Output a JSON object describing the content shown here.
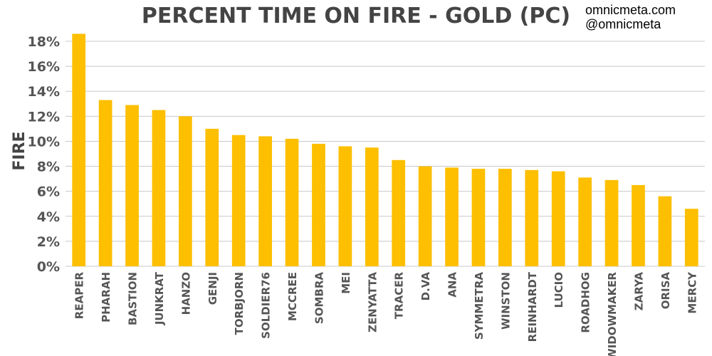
{
  "credit": {
    "site": "omnicmeta.com",
    "handle": "@omnicmeta"
  },
  "chart_data": {
    "type": "bar",
    "title": "PERCENT TIME ON FIRE - GOLD (PC)",
    "xlabel": "",
    "ylabel": "FIRE",
    "ylim": [
      0,
      18
    ],
    "yticks": [
      "0%",
      "2%",
      "4%",
      "6%",
      "8%",
      "10%",
      "12%",
      "14%",
      "16%",
      "18%"
    ],
    "grid": true,
    "bar_color": "#fdbf00",
    "categories": [
      "REAPER",
      "PHARAH",
      "BASTION",
      "JUNKRAT",
      "HANZO",
      "GENJI",
      "TORBJORN",
      "SOLDIER76",
      "MCCREE",
      "SOMBRA",
      "MEI",
      "ZENYATTA",
      "TRACER",
      "D.VA",
      "ANA",
      "SYMMETRA",
      "WINSTON",
      "REINHARDT",
      "LUCIO",
      "ROADHOG",
      "WIDOWMAKER",
      "ZARYA",
      "ORISA",
      "MERCY"
    ],
    "values": [
      18.6,
      13.3,
      12.9,
      12.5,
      12.0,
      11.0,
      10.5,
      10.4,
      10.2,
      9.8,
      9.6,
      9.5,
      8.5,
      8.0,
      7.9,
      7.8,
      7.8,
      7.7,
      7.6,
      7.1,
      6.9,
      6.5,
      5.6,
      4.6
    ]
  }
}
